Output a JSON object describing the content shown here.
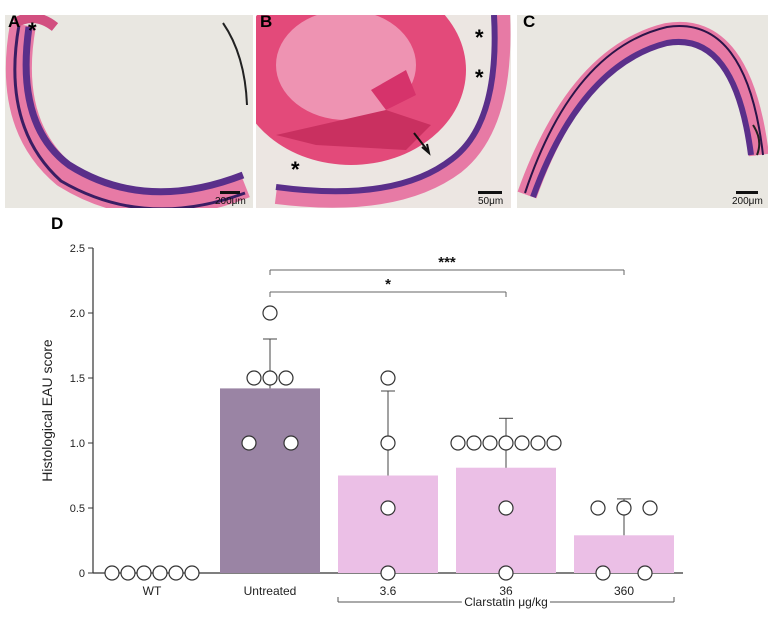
{
  "panels": [
    {
      "letter": "A",
      "scale": "200μm"
    },
    {
      "letter": "B",
      "scale": "50μm"
    },
    {
      "letter": "C",
      "scale": "200μm"
    }
  ],
  "annotations": {
    "asterisk": "*"
  },
  "chart_label": "D",
  "colors": {
    "untreated": "#9a84a4",
    "treated": "#ebbfe6",
    "tissue_pink": "#e77aa5",
    "tissue_purple": "#5a2f8a",
    "background": "#e9e7e1"
  },
  "chart_data": {
    "type": "bar",
    "ylabel": "Histological EAU score",
    "ylim": [
      0,
      2.5
    ],
    "yticks": [
      "0",
      "0.5",
      "1.0",
      "1.5",
      "2.0",
      "2.5"
    ],
    "categories": [
      "WT",
      "Untreated",
      "3.6",
      "36",
      "360"
    ],
    "group_label": "Clarstatin μg/kg",
    "values": [
      0,
      1.42,
      0.75,
      0.81,
      0.29
    ],
    "errors": [
      0,
      0.38,
      0.65,
      0.38,
      0.28
    ],
    "points": [
      [
        0,
        0,
        0,
        0,
        0,
        0
      ],
      [
        2.0,
        1.5,
        1.5,
        1.5,
        1.0,
        1.0
      ],
      [
        1.5,
        1.0,
        0.5,
        0
      ],
      [
        1.0,
        1.0,
        1.0,
        1.0,
        1.0,
        1.0,
        1.0,
        0.5,
        0
      ],
      [
        0.5,
        0.5,
        0.5,
        0,
        0
      ]
    ],
    "significance": [
      {
        "from": "Untreated",
        "to": "36",
        "label": "*"
      },
      {
        "from": "Untreated",
        "to": "360",
        "label": "***"
      }
    ]
  }
}
